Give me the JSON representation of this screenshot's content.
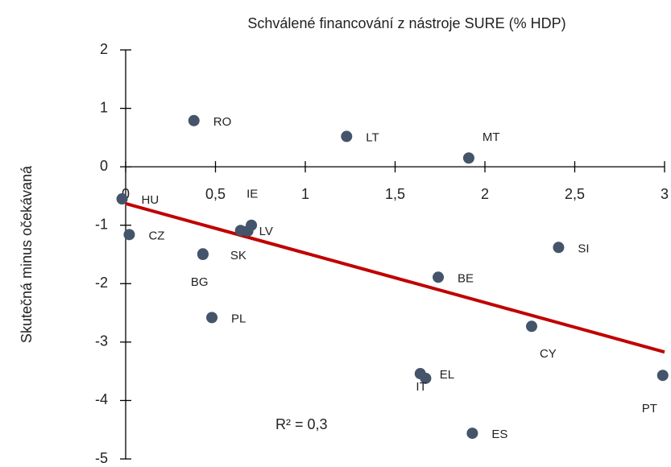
{
  "chart_data": {
    "type": "scatter",
    "title": "Schválené financování z nástroje SURE (% HDP)",
    "y_label": "Skutečná minus očekávaná",
    "annotation": "R² = 0,3",
    "color": "#44546a",
    "labels": [
      "RO",
      "LT",
      "MT",
      "HU",
      "CZ",
      "IE",
      "LV",
      null,
      "SK",
      "BG",
      "PL",
      "BE",
      "SI",
      "CY",
      "EL",
      "IT",
      "ES",
      "PT"
    ],
    "x": [
      0.38,
      1.23,
      1.91,
      -0.02,
      0.02,
      0.7,
      0.68,
      0.64,
      0.43,
      0.43,
      0.48,
      1.74,
      2.41,
      2.26,
      1.64,
      1.67,
      1.93,
      2.99
    ],
    "values": [
      0.79,
      0.52,
      0.15,
      -0.55,
      -1.16,
      -1.0,
      -1.1,
      -1.09,
      -1.49,
      -1.5,
      -2.58,
      -1.89,
      -1.38,
      -2.73,
      -3.54,
      -3.62,
      -4.56,
      -3.57
    ],
    "trendline": {
      "color": "#c00000",
      "x": [
        0,
        3
      ],
      "values": [
        -0.63,
        -3.17
      ]
    },
    "xlim": [
      0,
      3
    ],
    "xticks": [
      0,
      {
        "value": 0.5,
        "label": "0,5"
      },
      1,
      {
        "value": 1.5,
        "label": "1,5"
      },
      2,
      {
        "value": 2.5,
        "label": "2,5"
      },
      3
    ],
    "ylim": [
      -5,
      2
    ],
    "yticks": [
      -5,
      -4,
      -3,
      -2,
      -1,
      0,
      1,
      2
    ]
  }
}
